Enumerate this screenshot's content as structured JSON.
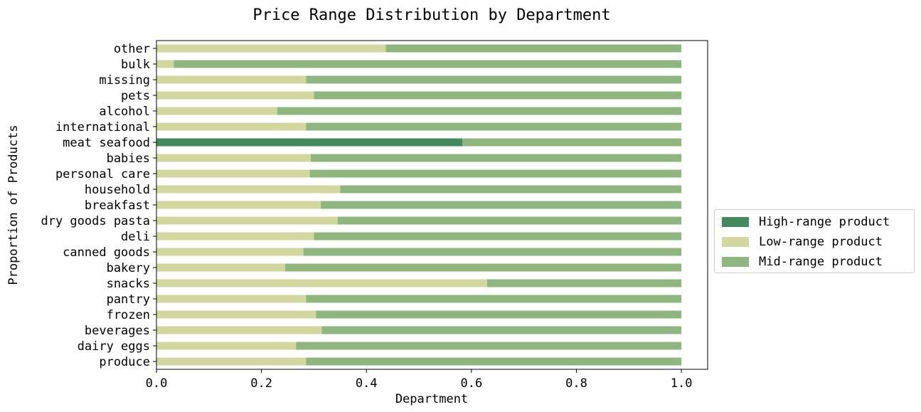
{
  "chart_data": {
    "type": "bar",
    "orientation": "horizontal",
    "stacked": true,
    "title": "Price Range Distribution by Department",
    "xlabel": "Department",
    "ylabel": "Proportion of Products",
    "xlim": [
      0,
      1.05
    ],
    "x_ticks": [
      "0.0",
      "0.2",
      "0.4",
      "0.6",
      "0.8",
      "1.0"
    ],
    "grid": false,
    "legend_position": "center-right outside",
    "categories": [
      "produce",
      "dairy eggs",
      "beverages",
      "frozen",
      "pantry",
      "snacks",
      "bakery",
      "canned goods",
      "deli",
      "dry goods pasta",
      "breakfast",
      "household",
      "personal care",
      "babies",
      "meat seafood",
      "international",
      "alcohol",
      "pets",
      "missing",
      "bulk",
      "other"
    ],
    "series": [
      {
        "name": "High-range product",
        "color": "#428a5e",
        "values": [
          0,
          0,
          0,
          0,
          0,
          0,
          0,
          0,
          0,
          0,
          0,
          0,
          0,
          0,
          0.583,
          0,
          0,
          0,
          0,
          0,
          0
        ]
      },
      {
        "name": "Low-range product",
        "color": "#d2d79f",
        "values": [
          0.285,
          0.266,
          0.315,
          0.304,
          0.285,
          0.63,
          0.245,
          0.28,
          0.3,
          0.345,
          0.313,
          0.35,
          0.292,
          0.294,
          0,
          0.285,
          0.23,
          0.3,
          0.285,
          0.033,
          0.437
        ]
      },
      {
        "name": "Mid-range product",
        "color": "#90b67f",
        "values": [
          0.715,
          0.734,
          0.685,
          0.696,
          0.715,
          0.37,
          0.755,
          0.72,
          0.7,
          0.655,
          0.687,
          0.65,
          0.708,
          0.706,
          0.417,
          0.715,
          0.77,
          0.7,
          0.715,
          0.967,
          0.563
        ]
      }
    ]
  }
}
